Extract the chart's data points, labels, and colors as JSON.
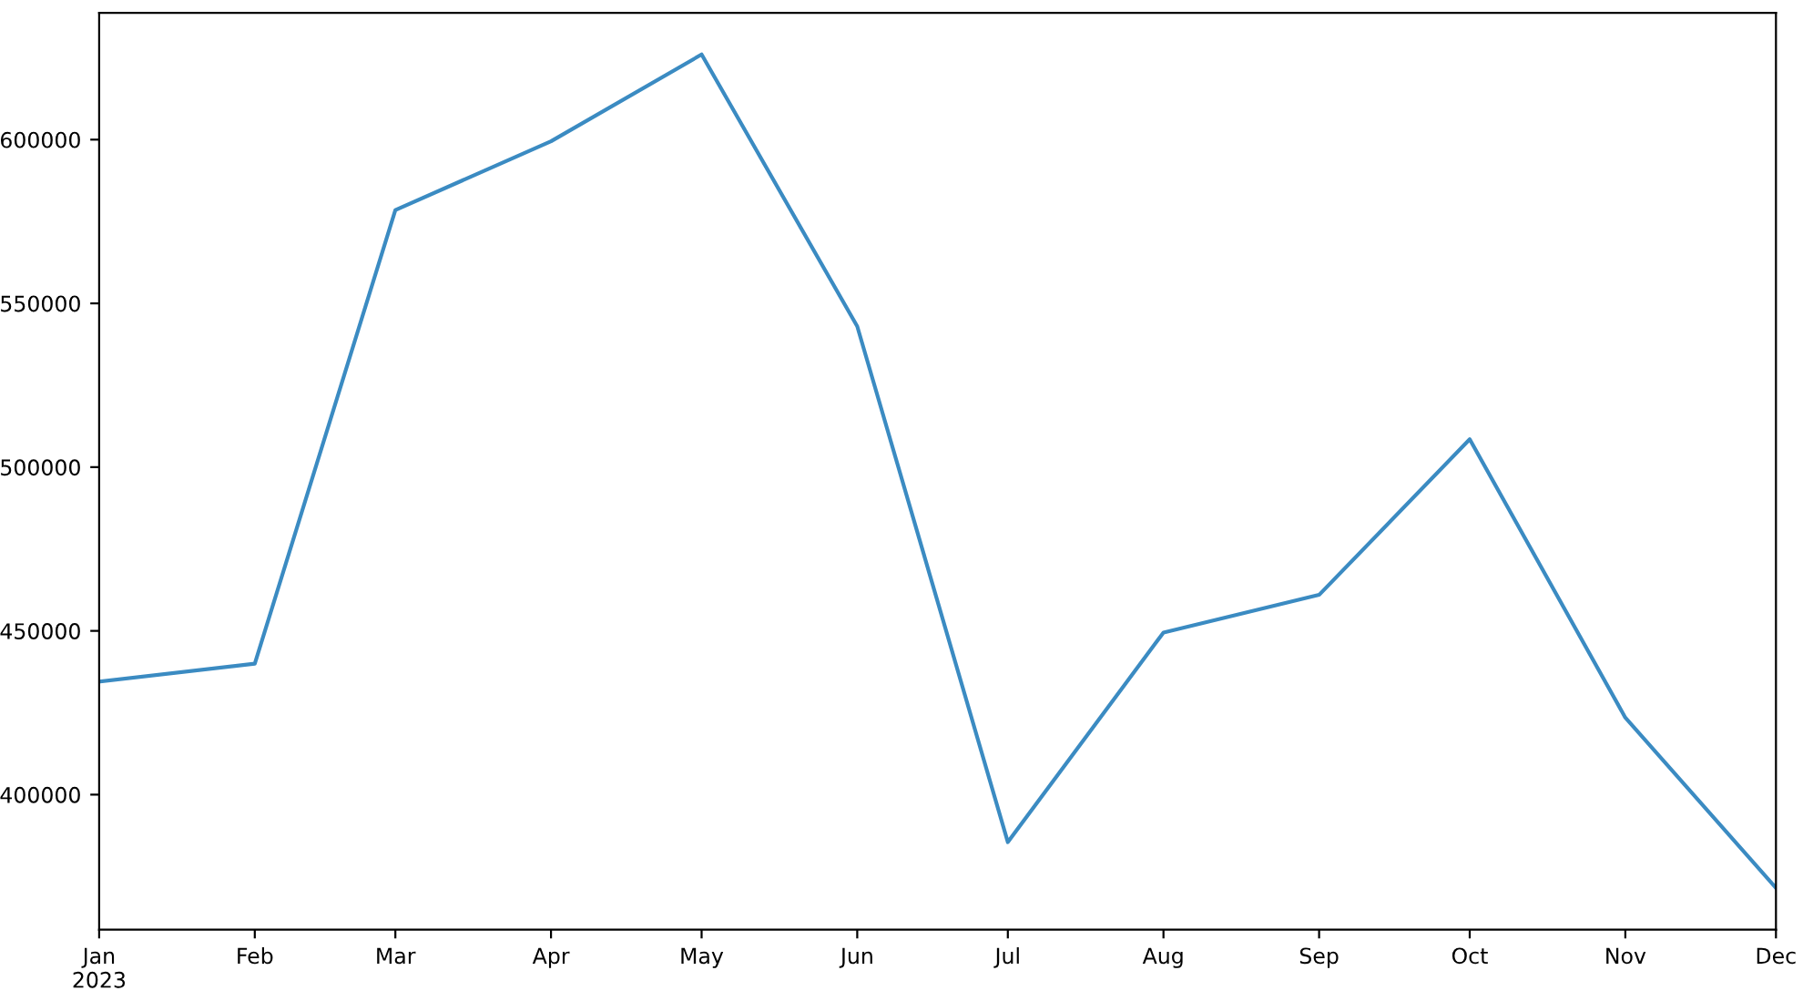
{
  "chart_data": {
    "type": "line",
    "x": [
      "2023-01",
      "2023-02",
      "2023-03",
      "2023-04",
      "2023-05",
      "2023-06",
      "2023-07",
      "2023-08",
      "2023-09",
      "2023-10",
      "2023-11",
      "2023-12"
    ],
    "series": [
      {
        "color": "#3b8bc2",
        "values": [
          434500,
          440000,
          578500,
          599500,
          626000,
          543000,
          385500,
          449500,
          461000,
          508500,
          423500,
          371500
        ]
      }
    ],
    "xlim": [
      "2023-01",
      "2023-12"
    ],
    "xticks": [
      {
        "value": "2023-01",
        "label": "Jan\n2023"
      },
      {
        "value": "2023-02",
        "label": "Feb"
      },
      {
        "value": "2023-03",
        "label": "Mar"
      },
      {
        "value": "2023-04",
        "label": "Apr"
      },
      {
        "value": "2023-05",
        "label": "May"
      },
      {
        "value": "2023-06",
        "label": "Jun"
      },
      {
        "value": "2023-07",
        "label": "Jul"
      },
      {
        "value": "2023-08",
        "label": "Aug"
      },
      {
        "value": "2023-09",
        "label": "Sep"
      },
      {
        "value": "2023-10",
        "label": "Oct"
      },
      {
        "value": "2023-11",
        "label": "Nov"
      },
      {
        "value": "2023-12",
        "label": "Dec"
      }
    ],
    "ylim": [
      358800,
      638700
    ],
    "yticks": [
      400000,
      450000,
      500000,
      550000,
      600000
    ],
    "grid": false,
    "legend": false
  }
}
